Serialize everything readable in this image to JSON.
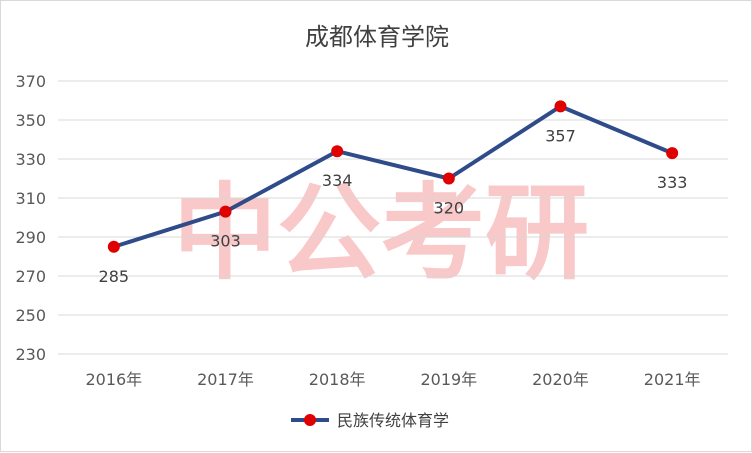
{
  "watermark": "中公考研",
  "chart_data": {
    "type": "line",
    "title": "成都体育学院",
    "categories": [
      "2016年",
      "2017年",
      "2018年",
      "2019年",
      "2020年",
      "2021年"
    ],
    "series": [
      {
        "name": "民族传统体育学",
        "values": [
          285,
          303,
          334,
          320,
          357,
          333
        ]
      }
    ],
    "y_ticks": [
      "230",
      "250",
      "270",
      "290",
      "310",
      "330",
      "350",
      "370"
    ],
    "ylim": [
      230,
      370
    ],
    "grid": true,
    "legend_position": "bottom",
    "data_labels": [
      "285",
      "303",
      "334",
      "320",
      "357",
      "333"
    ],
    "line_color": "#2f4b8a",
    "marker_color": "#e00000",
    "watermark_color": "#f7b5b5"
  }
}
